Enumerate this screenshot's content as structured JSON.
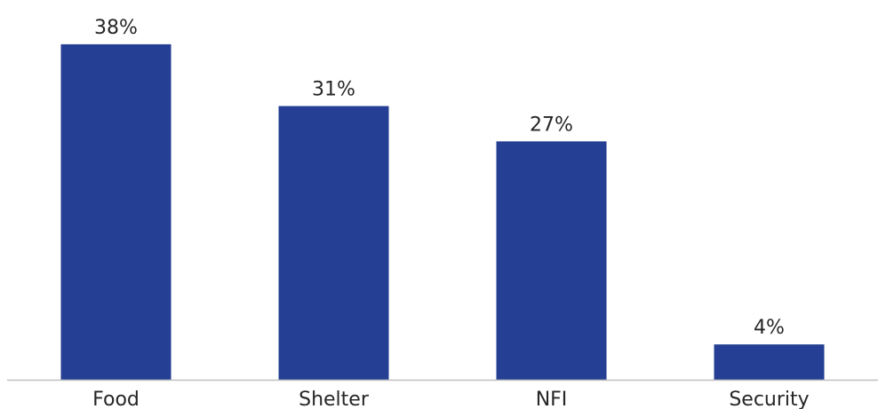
{
  "chart_data": {
    "type": "bar",
    "title": "",
    "xlabel": "",
    "ylabel": "",
    "categories": [
      "Food",
      "Shelter",
      "NFI",
      "Security"
    ],
    "values": [
      38,
      31,
      27,
      4
    ],
    "value_labels": [
      "38%",
      "31%",
      "27%",
      "4%"
    ],
    "ylim": [
      0,
      40
    ],
    "grid": false,
    "legend": "none",
    "bar_color": "#243F93",
    "axis_color": "#BFBFBF",
    "text_color": "#262626"
  }
}
